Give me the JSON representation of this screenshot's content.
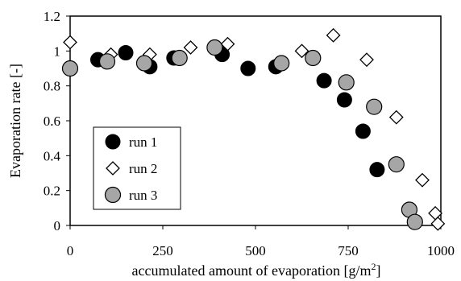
{
  "chart_data": {
    "type": "scatter",
    "xlabel": "accumulated amount of evaporation [g/m",
    "xlabel_superscript": "2",
    "xlabel_suffix": "]",
    "ylabel": "Evaporation rate [-]",
    "xlim": [
      0,
      1000
    ],
    "ylim": [
      0,
      1.2
    ],
    "x_ticks": [
      0,
      250,
      500,
      750,
      1000
    ],
    "y_ticks": [
      0,
      0.2,
      0.4,
      0.6,
      0.8,
      1,
      1.2
    ],
    "x_tick_labels": [
      "0",
      "250",
      "500",
      "750",
      "1000"
    ],
    "y_tick_labels": [
      "0",
      "0.2",
      "0.4",
      "0.6",
      "0.8",
      "1",
      "1.2"
    ],
    "grid": false,
    "legend_position": "left",
    "series": [
      {
        "name": "run 1",
        "marker": "filled-circle",
        "color": "#000000",
        "points": [
          [
            75,
            0.95
          ],
          [
            150,
            0.99
          ],
          [
            215,
            0.91
          ],
          [
            280,
            0.96
          ],
          [
            410,
            0.98
          ],
          [
            480,
            0.9
          ],
          [
            555,
            0.91
          ],
          [
            685,
            0.83
          ],
          [
            740,
            0.72
          ],
          [
            790,
            0.54
          ],
          [
            828,
            0.32
          ]
        ]
      },
      {
        "name": "run 2",
        "marker": "open-diamond",
        "color": "#000000",
        "points": [
          [
            0,
            1.05
          ],
          [
            110,
            0.98
          ],
          [
            215,
            0.98
          ],
          [
            325,
            1.02
          ],
          [
            425,
            1.04
          ],
          [
            625,
            1.0
          ],
          [
            710,
            1.09
          ],
          [
            800,
            0.95
          ],
          [
            880,
            0.62
          ],
          [
            950,
            0.26
          ],
          [
            985,
            0.07
          ],
          [
            992,
            0.01
          ]
        ]
      },
      {
        "name": "run 3",
        "marker": "gray-circle",
        "color": "#a6a6a6",
        "points": [
          [
            0,
            0.9
          ],
          [
            100,
            0.94
          ],
          [
            200,
            0.93
          ],
          [
            295,
            0.96
          ],
          [
            390,
            1.02
          ],
          [
            570,
            0.93
          ],
          [
            655,
            0.96
          ],
          [
            745,
            0.82
          ],
          [
            820,
            0.68
          ],
          [
            880,
            0.35
          ],
          [
            915,
            0.09
          ],
          [
            930,
            0.02
          ]
        ]
      }
    ]
  }
}
